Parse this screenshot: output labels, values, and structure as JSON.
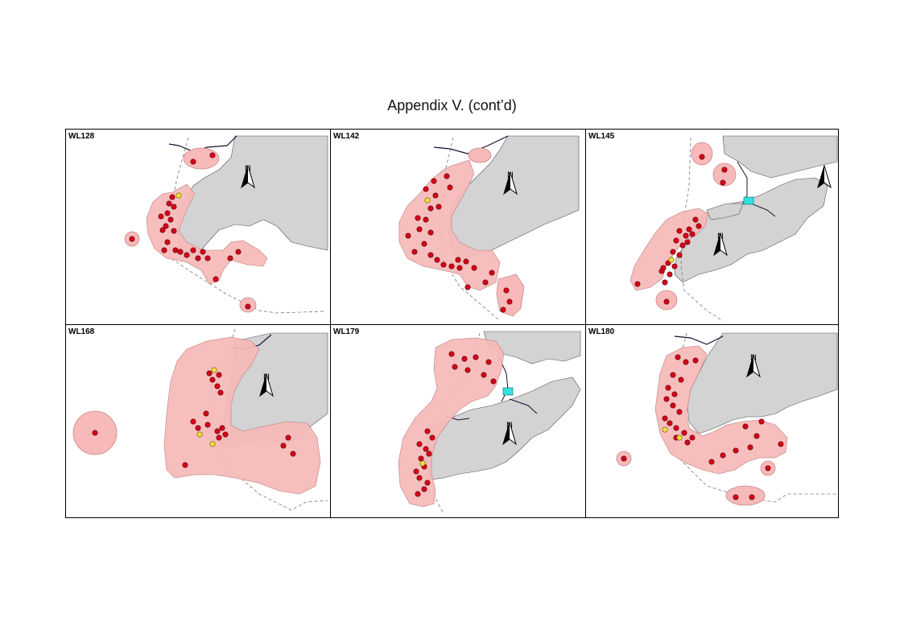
{
  "page": {
    "title": "Appendix V.  (cont’d)"
  },
  "north_label": "N",
  "colors": {
    "land": "#d3d3d3",
    "range": "#f7b9b9",
    "range_edge": "#c98a8a",
    "sighting": "#d6001c",
    "sighting_yellow": "#f4e03a",
    "reclamation": "#35e0e0"
  },
  "panels": [
    {
      "id": "WL128",
      "label": "WL128"
    },
    {
      "id": "WL142",
      "label": "WL142"
    },
    {
      "id": "WL145",
      "label": "WL145"
    },
    {
      "id": "WL168",
      "label": "WL168"
    },
    {
      "id": "WL179",
      "label": "WL179"
    },
    {
      "id": "WL180",
      "label": "WL180"
    }
  ]
}
